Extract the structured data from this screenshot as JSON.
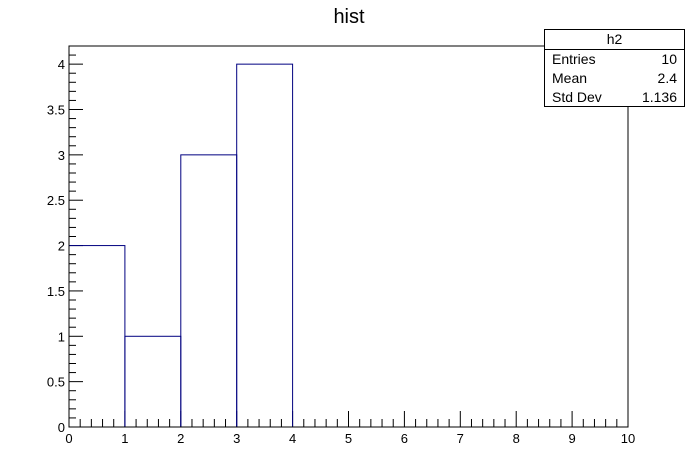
{
  "chart_data": {
    "type": "histogram",
    "title": "hist",
    "series_name": "h2",
    "bin_edges": [
      0,
      1,
      2,
      3,
      4,
      5,
      6,
      7,
      8,
      9,
      10
    ],
    "counts": [
      2,
      1,
      3,
      4,
      0,
      0,
      0,
      0,
      0,
      0
    ],
    "xlim": [
      0,
      10
    ],
    "ylim": [
      0,
      4.2
    ],
    "x_ticks": [
      "0",
      "1",
      "2",
      "3",
      "4",
      "5",
      "6",
      "7",
      "8",
      "9",
      "10"
    ],
    "y_ticks": [
      "0",
      "0.5",
      "1",
      "1.5",
      "2",
      "2.5",
      "3",
      "3.5",
      "4"
    ],
    "line_color": "#000080",
    "stats": {
      "name": "h2",
      "entries_label": "Entries",
      "entries": "10",
      "mean_label": "Mean",
      "mean": "2.4",
      "stddev_label": "Std Dev",
      "stddev": "1.136"
    }
  }
}
